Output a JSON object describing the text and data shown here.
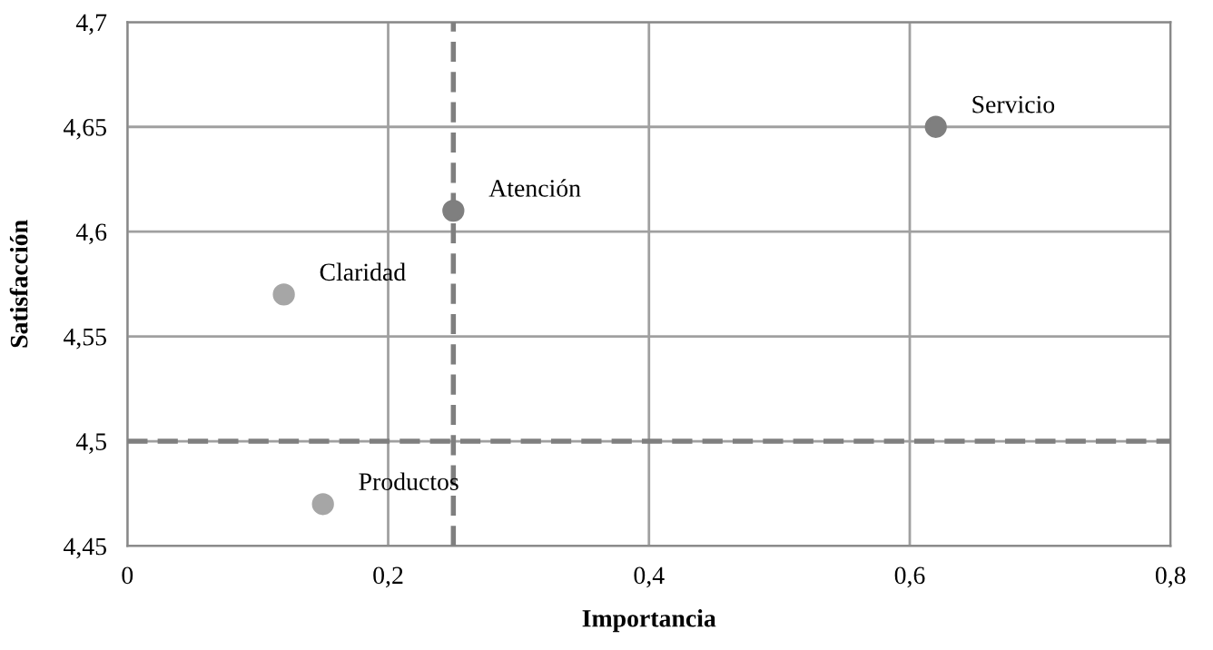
{
  "chart_data": {
    "type": "scatter",
    "xlabel": "Importancia",
    "ylabel": "Satisfacción",
    "series": [
      {
        "name": "Claridad",
        "color": "#a6a6a6",
        "x": [
          0.12
        ],
        "values": [
          4.57
        ]
      },
      {
        "name": "Atención",
        "color": "#7f7f7f",
        "x": [
          0.25
        ],
        "values": [
          4.61
        ]
      },
      {
        "name": "Servicio",
        "color": "#7f7f7f",
        "x": [
          0.62
        ],
        "values": [
          4.65
        ]
      },
      {
        "name": "Productos",
        "color": "#a6a6a6",
        "x": [
          0.15
        ],
        "values": [
          4.47
        ]
      }
    ],
    "xlim": [
      0,
      0.8
    ],
    "xticks": [
      0,
      {
        "value": 0.2,
        "label": "0,2"
      },
      {
        "value": 0.4,
        "label": "0,4"
      },
      {
        "value": 0.6,
        "label": "0,6"
      },
      {
        "value": 0.8,
        "label": "0,8"
      }
    ],
    "ylim": [
      4.45,
      4.7
    ],
    "yticks": [
      {
        "value": 4.45,
        "label": "4,45"
      },
      {
        "value": 4.5,
        "label": "4,5"
      },
      {
        "value": 4.55,
        "label": "4,55"
      },
      {
        "value": 4.6,
        "label": "4,6"
      },
      {
        "value": 4.65,
        "label": "4,65"
      },
      {
        "value": 4.7,
        "label": "4,7"
      }
    ],
    "ref_lines": [
      {
        "axis": "x",
        "value": 0.25,
        "color": "#7f7f7f",
        "line_style": "dashed"
      },
      {
        "axis": "y",
        "value": 4.5,
        "color": "#7f7f7f",
        "line_style": "dashed"
      }
    ],
    "grid": true,
    "marker": "circle",
    "legend": false
  }
}
